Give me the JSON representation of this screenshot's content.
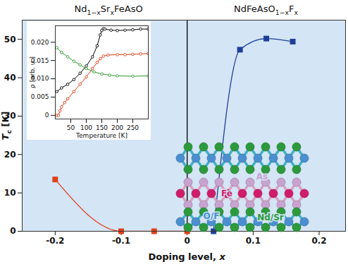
{
  "chart_data": [
    {
      "type": "line",
      "region_titles": [
        [
          {
            "text": "Nd"
          },
          {
            "text": "1−x",
            "sub": true
          },
          {
            "text": "Sr"
          },
          {
            "text": "x",
            "sub": true
          },
          {
            "text": "FeAsO"
          }
        ],
        [
          {
            "text": "NdFeAsO"
          },
          {
            "text": "1−x",
            "sub": true
          },
          {
            "text": "F"
          },
          {
            "text": "x",
            "sub": true
          }
        ]
      ],
      "xlabel": [
        {
          "text": "Doping level, "
        },
        {
          "text": "x",
          "italic": true
        }
      ],
      "ylabel": [
        {
          "text": "T",
          "italic": true
        },
        {
          "text": "c",
          "sub": true
        },
        {
          "text": " [K]"
        }
      ],
      "xlim": [
        -0.25,
        0.24
      ],
      "ylim": [
        0,
        55
      ],
      "xticks": [
        -0.2,
        -0.1,
        0,
        0.1,
        0.2
      ],
      "yticks": [
        0,
        10,
        20,
        30,
        40,
        50
      ],
      "reference_lines": [
        {
          "x": 0
        }
      ],
      "series": [
        {
          "color": "#e0401a",
          "marker": "square",
          "x": [
            -0.2,
            -0.1,
            -0.05,
            0
          ],
          "values": [
            13.5,
            0,
            0,
            0
          ]
        },
        {
          "color": "#1f3f9a",
          "marker": "square",
          "x": [
            0.04,
            0.08,
            0.12,
            0.16
          ],
          "values": [
            0,
            47.3,
            50.2,
            49.4
          ]
        }
      ],
      "annotations": [
        {
          "text": "As",
          "color": "#c9a3cf"
        },
        {
          "text": "Fe",
          "color": "#d01c6b"
        },
        {
          "text": "O/F",
          "color": "#4b8fd0"
        },
        {
          "text": "Nd/Sr",
          "color": "#2c9a3c"
        }
      ]
    },
    {
      "type": "line",
      "xlabel": "Temperature [K]",
      "ylabel": "ρ [arb. u.]",
      "xlim": [
        0,
        300
      ],
      "ylim": [
        -0.001,
        0.0245
      ],
      "xticks": [
        50,
        100,
        150,
        200,
        250
      ],
      "yticks": [
        0,
        0.005,
        {
          "value": 0.01,
          "label": "0.010"
        },
        0.015,
        {
          "value": 0.02,
          "label": "0.020"
        }
      ],
      "series": [
        {
          "color": "#000000",
          "marker": "circle-open",
          "x": [
            5,
            20,
            40,
            60,
            80,
            100,
            120,
            135,
            145,
            150,
            155,
            160,
            180,
            200,
            225,
            250,
            275,
            300
          ],
          "values": [
            0.0065,
            0.0075,
            0.0085,
            0.0098,
            0.0115,
            0.0135,
            0.016,
            0.019,
            0.022,
            0.0232,
            0.0237,
            0.0236,
            0.0233,
            0.0232,
            0.0233,
            0.0234,
            0.0236,
            0.0236
          ]
        },
        {
          "color": "#e0401a",
          "marker": "circle-open",
          "x": [
            5,
            10,
            15,
            20,
            30,
            40,
            60,
            80,
            100,
            120,
            135,
            145,
            155,
            170,
            200,
            225,
            250,
            275,
            300
          ],
          "values": [
            0,
            0,
            0.0012,
            0.0023,
            0.0035,
            0.0045,
            0.0065,
            0.0085,
            0.0105,
            0.0128,
            0.0145,
            0.0155,
            0.0162,
            0.0165,
            0.0166,
            0.0166,
            0.0167,
            0.0168,
            0.0169
          ]
        },
        {
          "color": "#2e9a2e",
          "marker": "circle-open",
          "x": [
            5,
            20,
            40,
            60,
            80,
            100,
            125,
            150,
            175,
            200,
            250,
            300
          ],
          "values": [
            0.0185,
            0.0172,
            0.016,
            0.0148,
            0.0138,
            0.0128,
            0.0119,
            0.0113,
            0.011,
            0.0108,
            0.0107,
            0.0108
          ]
        }
      ]
    }
  ]
}
